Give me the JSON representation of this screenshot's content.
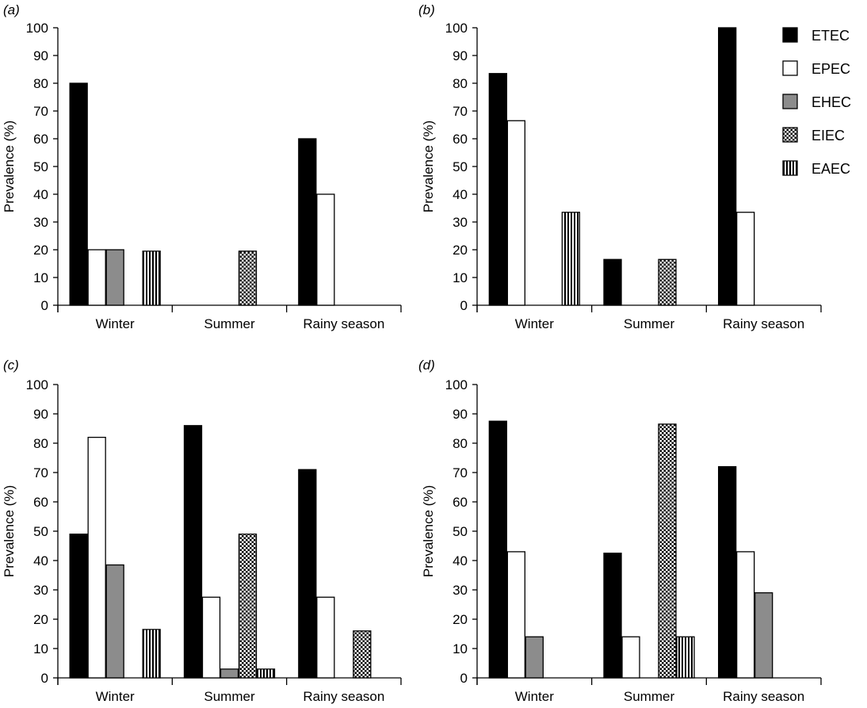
{
  "colors": {
    "ETEC": "#000000",
    "EPEC": "#ffffff",
    "EHEC": "#8c8c8c",
    "axis": "#000000"
  },
  "legend": {
    "items": [
      {
        "name": "ETEC",
        "pattern": "solid-black"
      },
      {
        "name": "EPEC",
        "pattern": "white"
      },
      {
        "name": "EHEC",
        "pattern": "grey"
      },
      {
        "name": "EIEC",
        "pattern": "dots"
      },
      {
        "name": "EAEC",
        "pattern": "vertical-stripes"
      }
    ]
  },
  "chart_data": [
    {
      "type": "bar",
      "panel": "(a)",
      "panel_letter": "a",
      "title": "",
      "xlabel": "",
      "ylabel": "Prevalence (%)",
      "ylim": [
        0,
        100
      ],
      "yticks": [
        0,
        10,
        20,
        30,
        40,
        50,
        60,
        70,
        80,
        90,
        100
      ],
      "categories": [
        "Winter",
        "Summer",
        "Rainy season"
      ],
      "series": [
        {
          "name": "ETEC",
          "values": [
            80,
            0,
            60
          ]
        },
        {
          "name": "EPEC",
          "values": [
            20,
            0,
            40
          ]
        },
        {
          "name": "EHEC",
          "values": [
            20,
            0,
            0
          ]
        },
        {
          "name": "EIEC",
          "values": [
            0,
            19.5,
            0
          ]
        },
        {
          "name": "EAEC",
          "values": [
            19.5,
            0,
            0
          ]
        }
      ]
    },
    {
      "type": "bar",
      "panel": "(b)",
      "panel_letter": "b",
      "title": "",
      "xlabel": "",
      "ylabel": "Prevalence (%)",
      "ylim": [
        0,
        100
      ],
      "yticks": [
        0,
        10,
        20,
        30,
        40,
        50,
        60,
        70,
        80,
        90,
        100
      ],
      "categories": [
        "Winter",
        "Summer",
        "Rainy season"
      ],
      "series": [
        {
          "name": "ETEC",
          "values": [
            83.5,
            16.5,
            100
          ]
        },
        {
          "name": "EPEC",
          "values": [
            66.5,
            0,
            33.5
          ]
        },
        {
          "name": "EHEC",
          "values": [
            0,
            0,
            0
          ]
        },
        {
          "name": "EIEC",
          "values": [
            0,
            16.5,
            0
          ]
        },
        {
          "name": "EAEC",
          "values": [
            33.5,
            0,
            0
          ]
        }
      ]
    },
    {
      "type": "bar",
      "panel": "(c)",
      "panel_letter": "c",
      "title": "",
      "xlabel": "",
      "ylabel": "Prevalence (%)",
      "ylim": [
        0,
        100
      ],
      "yticks": [
        0,
        10,
        20,
        30,
        40,
        50,
        60,
        70,
        80,
        90,
        100
      ],
      "categories": [
        "Winter",
        "Summer",
        "Rainy season"
      ],
      "series": [
        {
          "name": "ETEC",
          "values": [
            49,
            86,
            71
          ]
        },
        {
          "name": "EPEC",
          "values": [
            82,
            27.5,
            27.5
          ]
        },
        {
          "name": "EHEC",
          "values": [
            38.5,
            3,
            0
          ]
        },
        {
          "name": "EIEC",
          "values": [
            0,
            49,
            16
          ]
        },
        {
          "name": "EAEC",
          "values": [
            16.5,
            3,
            0
          ]
        }
      ]
    },
    {
      "type": "bar",
      "panel": "(d)",
      "panel_letter": "d",
      "title": "",
      "xlabel": "",
      "ylabel": "Prevalence (%)",
      "ylim": [
        0,
        100
      ],
      "yticks": [
        0,
        10,
        20,
        30,
        40,
        50,
        60,
        70,
        80,
        90,
        100
      ],
      "categories": [
        "Winter",
        "Summer",
        "Rainy season"
      ],
      "series": [
        {
          "name": "ETEC",
          "values": [
            87.5,
            42.5,
            72
          ]
        },
        {
          "name": "EPEC",
          "values": [
            43,
            14,
            43
          ]
        },
        {
          "name": "EHEC",
          "values": [
            14,
            0,
            29
          ]
        },
        {
          "name": "EIEC",
          "values": [
            0,
            86.5,
            0
          ]
        },
        {
          "name": "EAEC",
          "values": [
            0,
            14,
            0
          ]
        }
      ]
    }
  ]
}
